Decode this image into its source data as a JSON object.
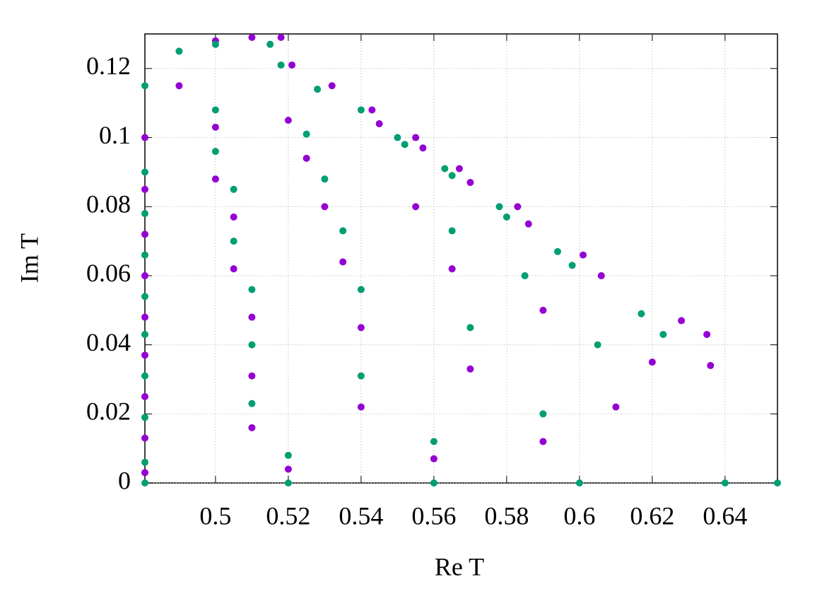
{
  "chart_data": {
    "type": "scatter",
    "x_label": "Re T",
    "y_label": "Im T",
    "xlim": [
      0.4806,
      0.6544
    ],
    "ylim": [
      0,
      0.13
    ],
    "xticks": [
      0.5,
      0.52,
      0.54,
      0.56,
      0.58,
      0.6,
      0.62,
      0.64
    ],
    "yticks": [
      0,
      0.02,
      0.04,
      0.06,
      0.08,
      0.1,
      0.12
    ],
    "grid": true,
    "series": [
      {
        "color": "#9400d3",
        "x": [
          0.4806,
          0.52,
          0.56,
          0.59,
          0.61,
          0.62,
          0.628,
          0.635,
          0.636
        ],
        "y": [
          0.003,
          0.004,
          0.007,
          0.012,
          0.022,
          0.035,
          0.047,
          0.043,
          0.034
        ]
      },
      {
        "color": "#9400d3",
        "x": [
          0.4806,
          0.51,
          0.54,
          0.57,
          0.59,
          0.601,
          0.606
        ],
        "y": [
          0.013,
          0.016,
          0.022,
          0.033,
          0.05,
          0.066,
          0.06
        ]
      },
      {
        "color": "#9400d3",
        "x": [
          0.4806,
          0.51,
          0.54,
          0.565,
          0.583,
          0.586
        ],
        "y": [
          0.025,
          0.031,
          0.045,
          0.062,
          0.08,
          0.075
        ]
      },
      {
        "color": "#9400d3",
        "x": [
          0.4806,
          0.51,
          0.535,
          0.555,
          0.567,
          0.57
        ],
        "y": [
          0.037,
          0.048,
          0.064,
          0.08,
          0.091,
          0.087
        ]
      },
      {
        "color": "#9400d3",
        "x": [
          0.4806,
          0.505,
          0.53,
          0.555,
          0.557
        ],
        "y": [
          0.048,
          0.062,
          0.08,
          0.1,
          0.097
        ]
      },
      {
        "color": "#9400d3",
        "x": [
          0.4806,
          0.505,
          0.525,
          0.543,
          0.545
        ],
        "y": [
          0.06,
          0.077,
          0.094,
          0.108,
          0.104
        ]
      },
      {
        "color": "#9400d3",
        "x": [
          0.4806,
          0.5,
          0.52,
          0.532
        ],
        "y": [
          0.072,
          0.088,
          0.105,
          0.115
        ]
      },
      {
        "color": "#9400d3",
        "x": [
          0.4806,
          0.5,
          0.521
        ],
        "y": [
          0.085,
          0.103,
          0.121
        ]
      },
      {
        "color": "#9400d3",
        "x": [
          0.4806,
          0.49,
          0.5,
          0.51,
          0.518
        ],
        "y": [
          0.1,
          0.115,
          0.128,
          0.129,
          0.129
        ]
      },
      {
        "color": "#009e73",
        "x": [
          0.4806,
          0.52,
          0.56,
          0.59,
          0.605,
          0.617,
          0.623
        ],
        "y": [
          0.006,
          0.008,
          0.012,
          0.02,
          0.04,
          0.049,
          0.043
        ]
      },
      {
        "color": "#009e73",
        "x": [
          0.4806,
          0.51,
          0.54,
          0.57,
          0.585,
          0.594,
          0.598
        ],
        "y": [
          0.019,
          0.023,
          0.031,
          0.045,
          0.06,
          0.067,
          0.063
        ]
      },
      {
        "color": "#009e73",
        "x": [
          0.4806,
          0.51,
          0.54,
          0.565,
          0.578,
          0.58
        ],
        "y": [
          0.031,
          0.04,
          0.056,
          0.073,
          0.08,
          0.077
        ]
      },
      {
        "color": "#009e73",
        "x": [
          0.4806,
          0.51,
          0.535,
          0.563,
          0.565
        ],
        "y": [
          0.043,
          0.056,
          0.073,
          0.091,
          0.089
        ]
      },
      {
        "color": "#009e73",
        "x": [
          0.4806,
          0.505,
          0.53,
          0.55,
          0.552
        ],
        "y": [
          0.054,
          0.07,
          0.088,
          0.1,
          0.098
        ]
      },
      {
        "color": "#009e73",
        "x": [
          0.4806,
          0.505,
          0.525,
          0.54
        ],
        "y": [
          0.066,
          0.085,
          0.101,
          0.108
        ]
      },
      {
        "color": "#009e73",
        "x": [
          0.4806,
          0.5,
          0.528
        ],
        "y": [
          0.078,
          0.096,
          0.114
        ]
      },
      {
        "color": "#009e73",
        "x": [
          0.4806,
          0.5,
          0.518
        ],
        "y": [
          0.09,
          0.108,
          0.121
        ]
      },
      {
        "color": "#009e73",
        "x": [
          0.4806,
          0.49,
          0.5,
          0.515
        ],
        "y": [
          0.115,
          0.125,
          0.127,
          0.127
        ]
      },
      {
        "color": "#009e73",
        "x": [
          0.4806,
          0.52,
          0.56,
          0.6,
          0.64,
          0.6544
        ],
        "y": [
          0,
          0,
          0,
          0,
          0,
          0
        ]
      }
    ]
  }
}
